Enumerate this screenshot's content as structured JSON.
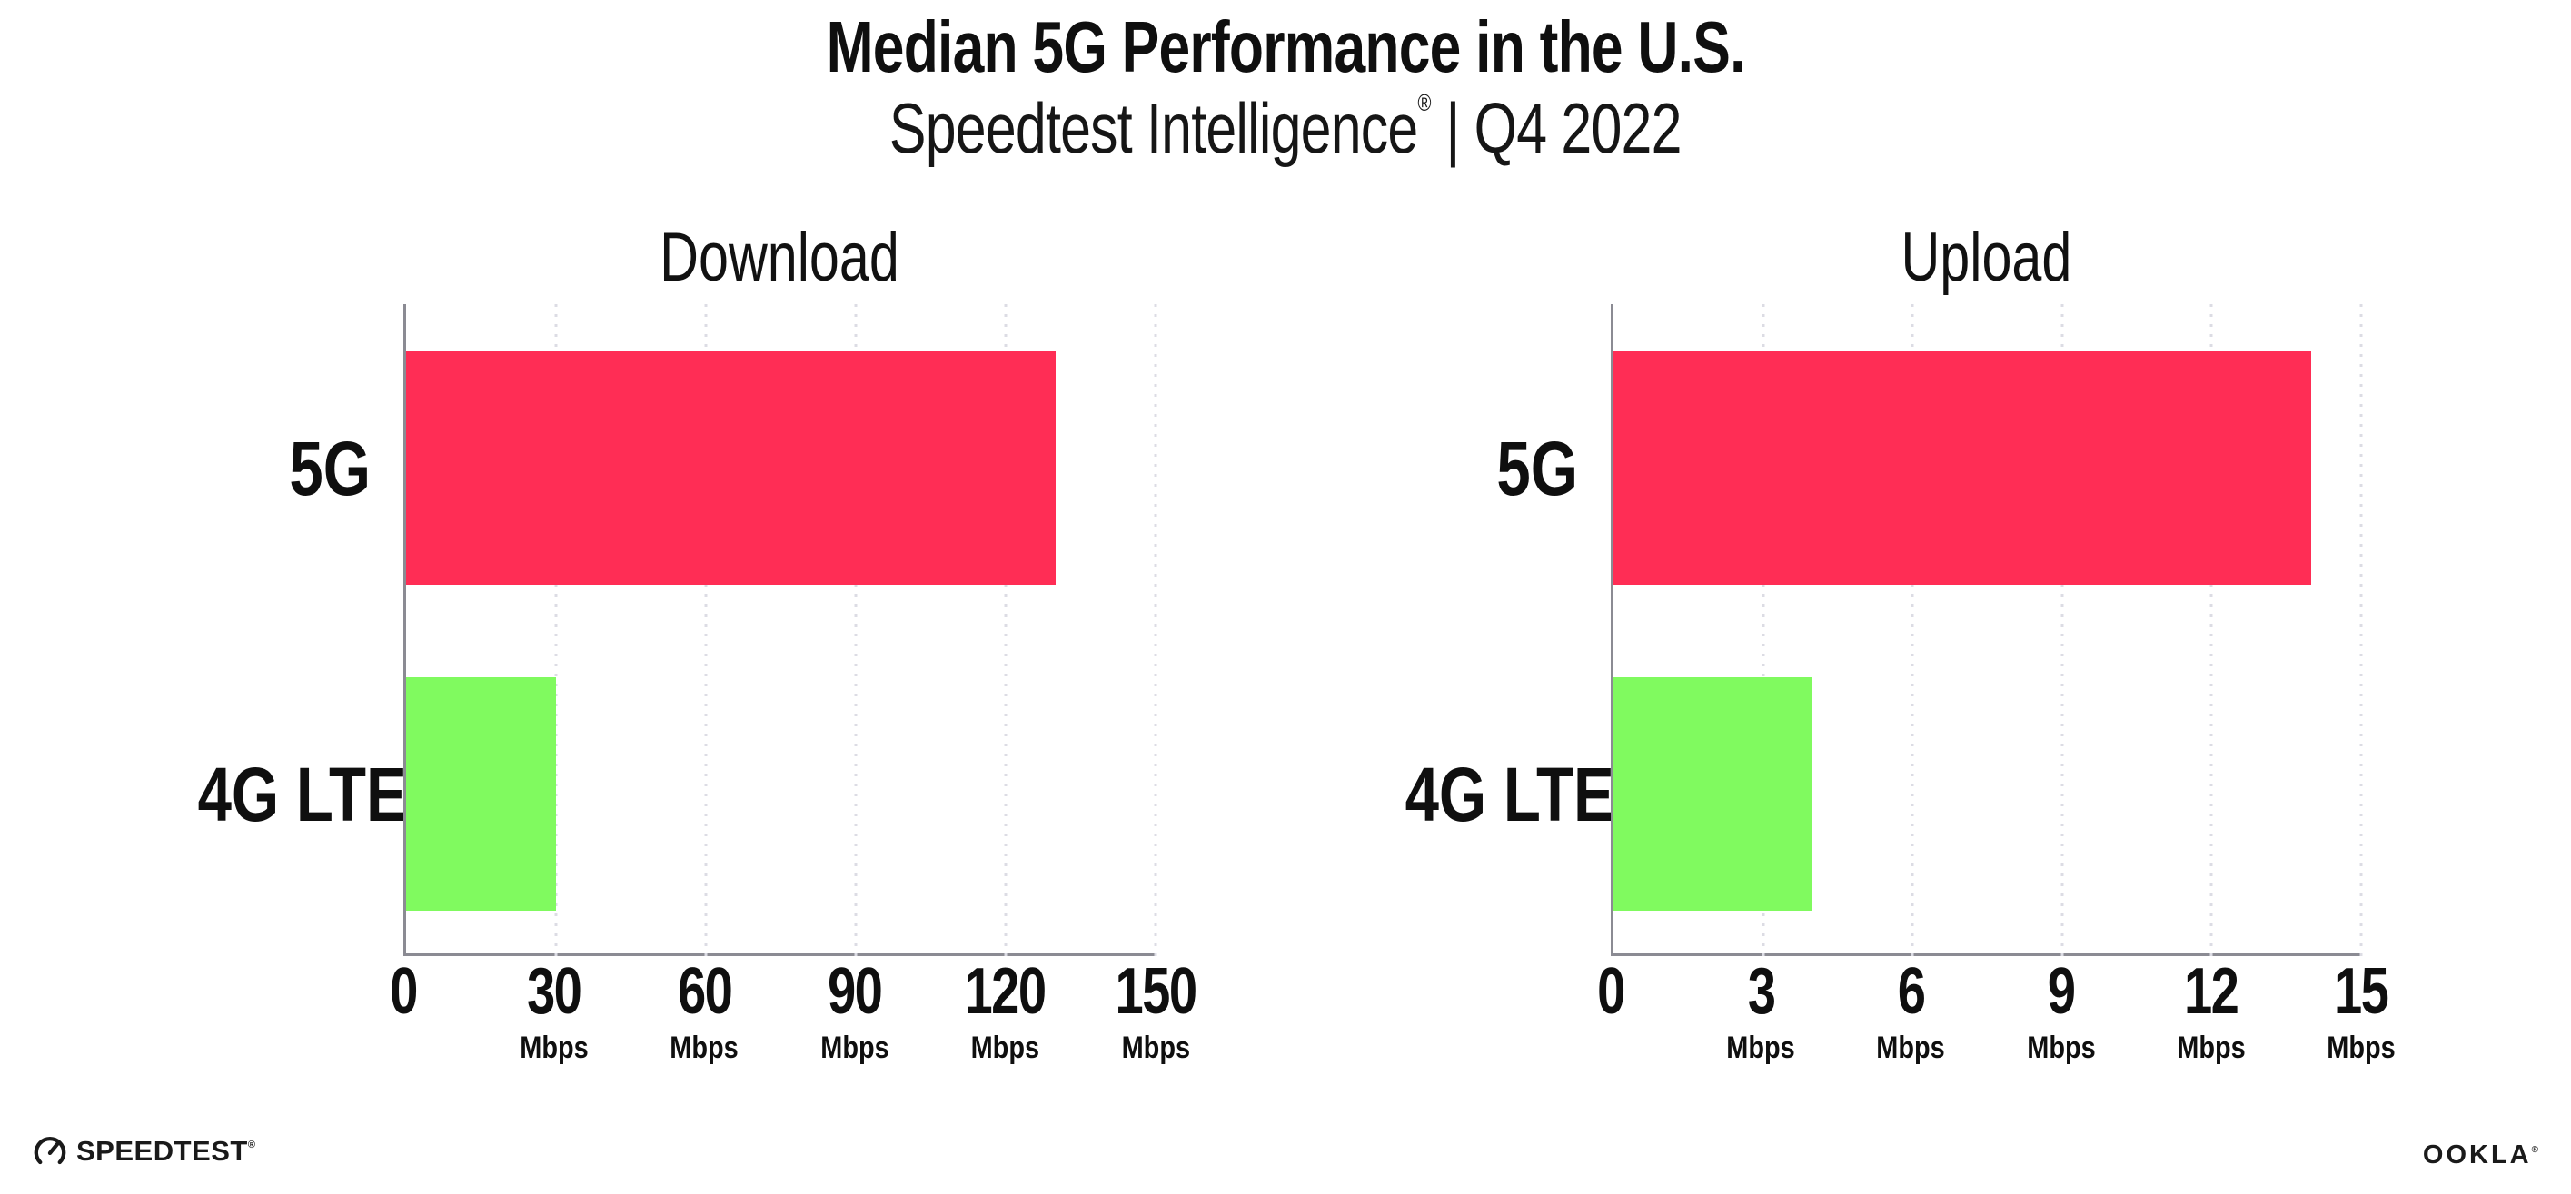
{
  "header": {
    "title": "Median 5G Performance in the U.S.",
    "subtitle_brand": "Speedtest Intelligence",
    "subtitle_reg": "®",
    "subtitle_rest": " | Q4 2022"
  },
  "chart_data": [
    {
      "type": "bar",
      "orientation": "horizontal",
      "title": "Download",
      "categories": [
        "5G",
        "4G LTE"
      ],
      "values": [
        130,
        30
      ],
      "unit": "Mbps",
      "xlabel": "",
      "ylabel": "",
      "xlim": [
        0,
        150
      ],
      "grid": "dotted-vertical",
      "legend": "none",
      "bar_colors": [
        "#ff2d55",
        "#80fa5f"
      ],
      "ticks": [
        {
          "value": 0,
          "label": "0",
          "unit": ""
        },
        {
          "value": 30,
          "label": "30",
          "unit": "Mbps"
        },
        {
          "value": 60,
          "label": "60",
          "unit": "Mbps"
        },
        {
          "value": 90,
          "label": "90",
          "unit": "Mbps"
        },
        {
          "value": 120,
          "label": "120",
          "unit": "Mbps"
        },
        {
          "value": 150,
          "label": "150",
          "unit": "Mbps"
        }
      ]
    },
    {
      "type": "bar",
      "orientation": "horizontal",
      "title": "Upload",
      "categories": [
        "5G",
        "4G LTE"
      ],
      "values": [
        14,
        4
      ],
      "unit": "Mbps",
      "xlabel": "",
      "ylabel": "",
      "xlim": [
        0,
        15
      ],
      "grid": "dotted-vertical",
      "legend": "none",
      "bar_colors": [
        "#ff2d55",
        "#80fa5f"
      ],
      "ticks": [
        {
          "value": 0,
          "label": "0",
          "unit": ""
        },
        {
          "value": 3,
          "label": "3",
          "unit": "Mbps"
        },
        {
          "value": 6,
          "label": "6",
          "unit": "Mbps"
        },
        {
          "value": 9,
          "label": "9",
          "unit": "Mbps"
        },
        {
          "value": 12,
          "label": "12",
          "unit": "Mbps"
        },
        {
          "value": 15,
          "label": "15",
          "unit": "Mbps"
        }
      ]
    }
  ],
  "footer": {
    "speedtest_logo_text": "SPEEDTEST",
    "speedtest_trademark": "®",
    "ookla_logo_text": "OOKLA",
    "ookla_trademark": "®"
  },
  "colors": {
    "bar_5g": "#ff2d55",
    "bar_4g_lte": "#80fa5f",
    "axis_line": "#8b8b93",
    "gridline_dot": "#dcdce4",
    "text": "#0f0f0f",
    "background": "#ffffff"
  }
}
